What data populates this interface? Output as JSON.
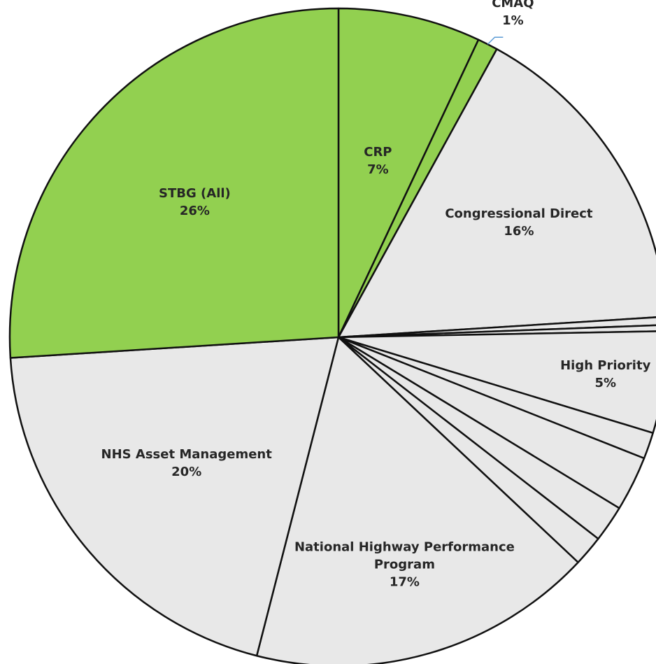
{
  "chart_data": {
    "type": "pie",
    "categories": [
      "CRP",
      "CMAQ",
      "Congressional Direct",
      null,
      null,
      "High Priority",
      null,
      null,
      null,
      null,
      "National Highway Performance Program",
      "NHS Asset Management",
      "STBG (All)"
    ],
    "values": [
      7,
      1,
      16,
      0.4,
      0.3,
      5,
      1.3,
      2.7,
      1.8,
      1.5,
      17,
      20,
      26
    ],
    "value_labels": [
      "7%",
      "1%",
      "16%",
      null,
      null,
      "5%",
      null,
      null,
      null,
      null,
      "17%",
      "20%",
      "26%"
    ],
    "colors": [
      "#92d050",
      "#92d050",
      "#e8e8e8",
      "#e8e8e8",
      "#e8e8e8",
      "#e8e8e8",
      "#e8e8e8",
      "#e8e8e8",
      "#e8e8e8",
      "#e8e8e8",
      "#e8e8e8",
      "#e8e8e8",
      "#92d050"
    ]
  }
}
